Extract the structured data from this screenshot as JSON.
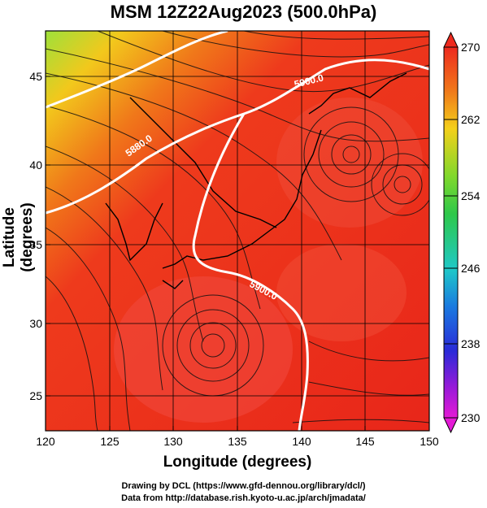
{
  "title": "MSM 12Z22Aug2023 (500.0hPa)",
  "xlabel": "Longitude (degrees)",
  "ylabel": "Latitude  (degrees)",
  "x_ticks": [
    "120",
    "125",
    "130",
    "135",
    "140",
    "145",
    "150"
  ],
  "y_ticks": [
    "45",
    "40",
    "35",
    "30",
    "25"
  ],
  "colorbar": {
    "ticks": [
      "270",
      "262",
      "254",
      "246",
      "238",
      "230"
    ],
    "min": 230,
    "max": 270
  },
  "contour_labels": [
    "5900.0",
    "5880.0",
    "5900.0"
  ],
  "credits": {
    "line1": "Drawing by DCL (https://www.gfd-dennou.org/library/dcl/)",
    "line2": "Data from http://database.rish.kyoto-u.ac.jp/arch/jmadata/"
  },
  "colors": {
    "warm": "#ef2a1c",
    "orange": "#f06a1a",
    "yellow_green": "#a6e23c",
    "contour": "#ffffff"
  }
}
